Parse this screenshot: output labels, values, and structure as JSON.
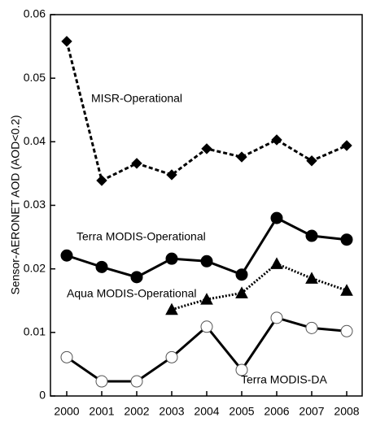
{
  "chart_data": {
    "type": "line",
    "y_label": "Sensor-AERONET AOD (AOD<0.2)",
    "categories": [
      "2000",
      "2001",
      "2002",
      "2003",
      "2004",
      "2005",
      "2006",
      "2007",
      "2008"
    ],
    "ylim": [
      0,
      0.06
    ],
    "yticks": [
      0,
      0.01,
      0.02,
      0.03,
      0.04,
      0.05,
      0.06
    ],
    "series": [
      {
        "name": "MISR-Operational",
        "color": "#000000",
        "line_style": "dashed",
        "marker": "diamond",
        "values": [
          0.0558,
          0.0339,
          0.0366,
          0.0348,
          0.0389,
          0.0376,
          0.0403,
          0.037,
          0.0394
        ]
      },
      {
        "name": "Terra MODIS-Operational",
        "color": "#000000",
        "line_style": "solid",
        "marker": "filled-circle",
        "values": [
          0.0221,
          0.0203,
          0.0187,
          0.0216,
          0.0212,
          0.0191,
          0.028,
          0.0252,
          0.0246
        ]
      },
      {
        "name": "Aqua MODIS-Operational",
        "color": "#000000",
        "line_style": "dotted",
        "marker": "triangle",
        "values": [
          null,
          null,
          null,
          0.0136,
          0.0152,
          0.0162,
          0.0208,
          0.0185,
          0.0166
        ]
      },
      {
        "name": "Terra MODIS-DA",
        "color": "#000000",
        "line_style": "solid",
        "marker": "open-circle",
        "values": [
          0.0061,
          0.0023,
          0.0023,
          0.0061,
          0.0109,
          0.0041,
          0.0123,
          0.0107,
          0.0102
        ]
      }
    ]
  }
}
